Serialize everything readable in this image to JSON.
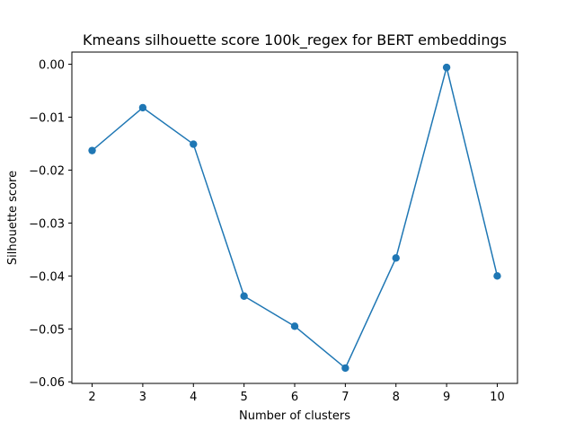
{
  "chart_data": {
    "type": "line",
    "title": "Kmeans silhouette score 100k_regex for BERT embeddings",
    "xlabel": "Number of clusters",
    "ylabel": "Silhouette score",
    "x": [
      2,
      3,
      4,
      5,
      6,
      7,
      8,
      9,
      10
    ],
    "series": [
      {
        "values": [
          -0.0163,
          -0.0082,
          -0.0151,
          -0.0438,
          -0.0495,
          -0.0574,
          -0.0366,
          -0.0006,
          -0.04
        ],
        "color": "#1f77b4",
        "marker": "circle"
      }
    ],
    "xticks": [
      "2",
      "3",
      "4",
      "5",
      "6",
      "7",
      "8",
      "9",
      "10"
    ],
    "yticks": [
      0.0,
      -0.01,
      -0.02,
      -0.03,
      -0.04,
      -0.05,
      -0.06
    ],
    "ytick_labels": [
      "0.00",
      "−0.01",
      "−0.02",
      "−0.03",
      "−0.04",
      "−0.05",
      "−0.06"
    ],
    "xlim": [
      1.6,
      10.4
    ],
    "ylim": [
      -0.0603,
      0.0023
    ],
    "grid": false,
    "legend": false
  }
}
